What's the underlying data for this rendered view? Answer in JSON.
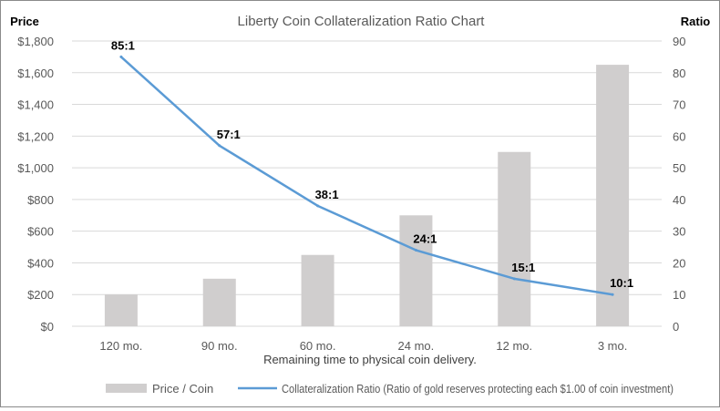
{
  "chart_data": {
    "type": "bar+line",
    "title": "Liberty Coin Collateralization Ratio Chart",
    "xlabel": "Remaining time to physical coin delivery.",
    "ylabel_left": "Price",
    "ylabel_right": "Ratio",
    "categories": [
      "120 mo.",
      "90 mo.",
      "60 mo.",
      "24 mo.",
      "12 mo.",
      "3 mo."
    ],
    "y_left": {
      "min": 0,
      "max": 1800,
      "step": 200,
      "ticks": [
        "$0",
        "$200",
        "$400",
        "$600",
        "$800",
        "$1,000",
        "$1,200",
        "$1,400",
        "$1,600",
        "$1,800"
      ]
    },
    "y_right": {
      "min": 0,
      "max": 90,
      "step": 10,
      "ticks": [
        "0",
        "10",
        "20",
        "30",
        "40",
        "50",
        "60",
        "70",
        "80",
        "90"
      ]
    },
    "grid": true,
    "legend_position": "bottom",
    "series": [
      {
        "name": "Price / Coin",
        "type": "bar",
        "axis": "left",
        "color": "#d0cece",
        "values": [
          200,
          300,
          450,
          700,
          1100,
          1650
        ]
      },
      {
        "name": "Collateralization Ratio (Ratio of gold reserves protecting each $1.00 of coin investment)",
        "type": "line",
        "axis": "right",
        "color": "#5b9bd5",
        "values": [
          85,
          57,
          38,
          24,
          15,
          10
        ],
        "data_labels": [
          "85:1",
          "57:1",
          "38:1",
          "24:1",
          "15:1",
          "10:1"
        ]
      }
    ]
  }
}
